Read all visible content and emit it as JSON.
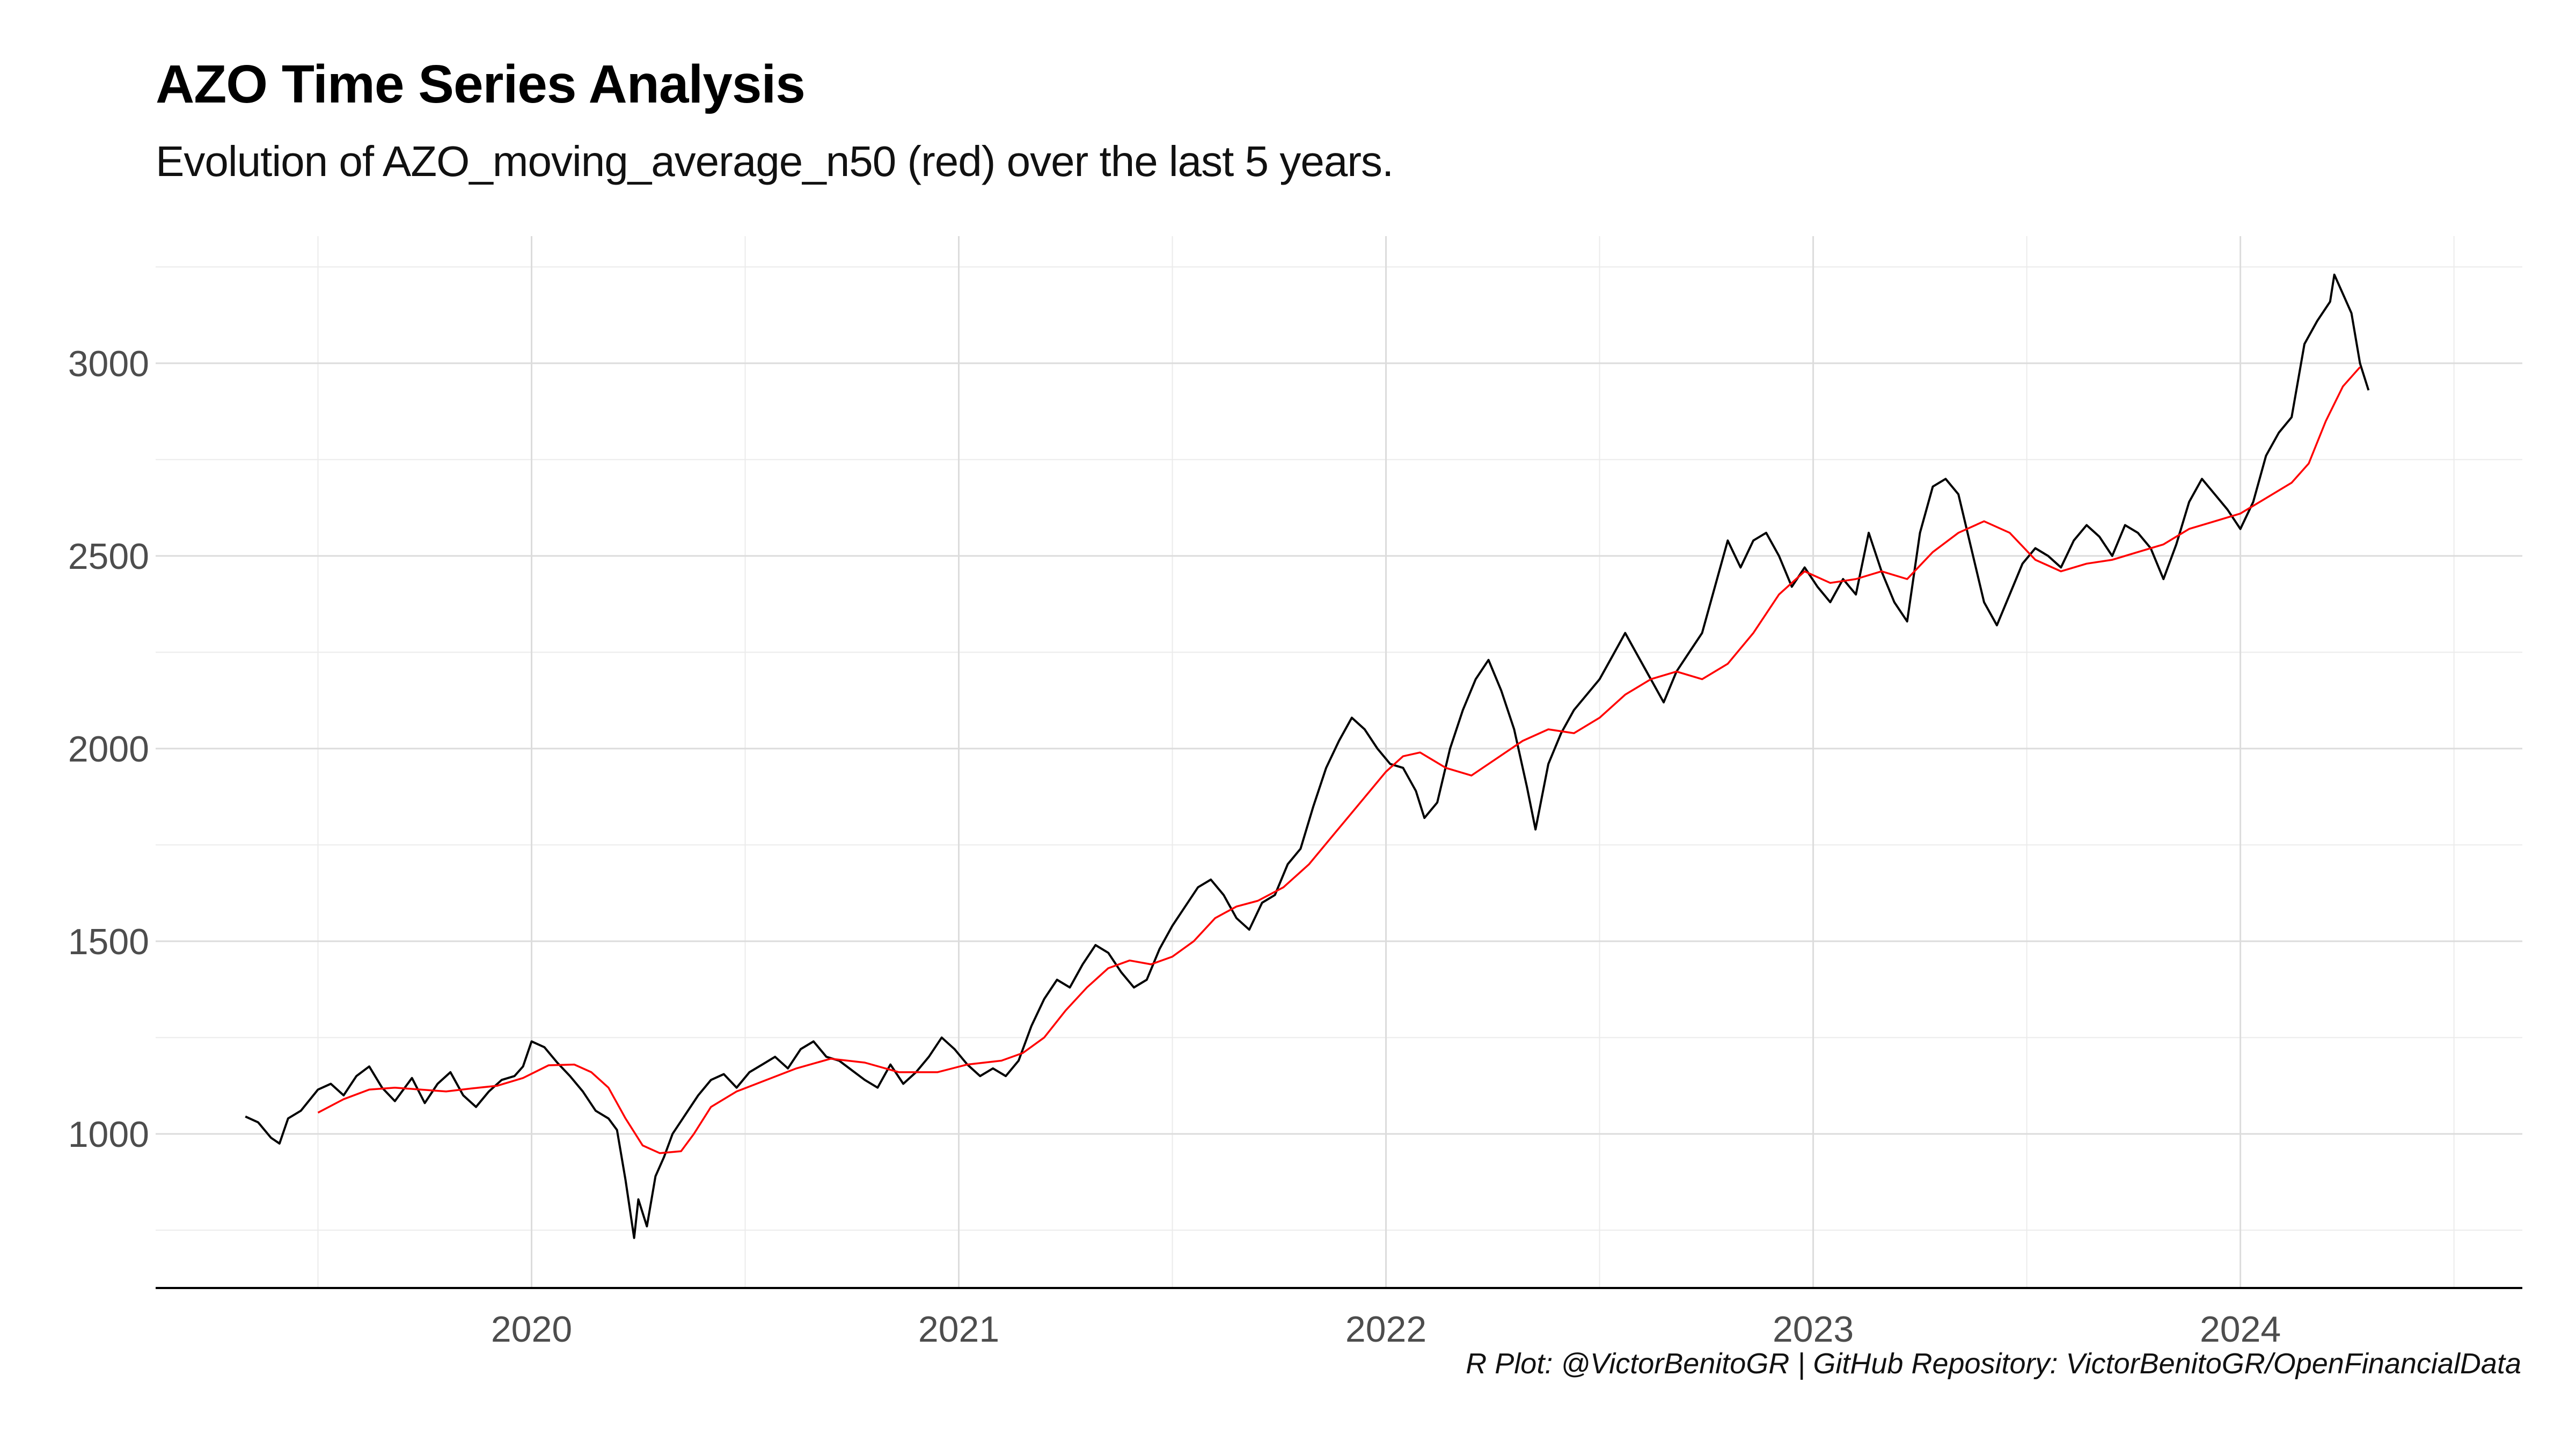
{
  "title": "AZO Time Series Analysis",
  "subtitle": "Evolution of AZO_moving_average_n50  (red) over the last 5 years.",
  "caption": "R Plot: @VictorBenitoGR | GitHub Repository:  VictorBenitoGR/OpenFinancialData",
  "chart_data": {
    "type": "line",
    "title": "AZO Time Series Analysis",
    "subtitle": "Evolution of AZO_moving_average_n50  (red) over the last 5 years.",
    "xlabel": "",
    "ylabel": "",
    "xlim": [
      2019.12,
      2024.66
    ],
    "ylim": [
      600,
      3330
    ],
    "x_ticks": [
      2020,
      2021,
      2022,
      2023,
      2024
    ],
    "x_tick_labels": [
      "2020",
      "2021",
      "2022",
      "2023",
      "2024"
    ],
    "y_ticks": [
      1000,
      1500,
      2000,
      2500,
      3000
    ],
    "y_tick_labels": [
      "1000",
      "1500",
      "2000",
      "2500",
      "3000"
    ],
    "grid": true,
    "legend": "none",
    "colors": {
      "price": "#000000",
      "moving_average": "#ff0000"
    },
    "series": [
      {
        "color": "#000000",
        "points": [
          [
            2019.33,
            1045
          ],
          [
            2019.36,
            1030
          ],
          [
            2019.39,
            990
          ],
          [
            2019.41,
            975
          ],
          [
            2019.43,
            1040
          ],
          [
            2019.46,
            1060
          ],
          [
            2019.5,
            1115
          ],
          [
            2019.53,
            1130
          ],
          [
            2019.56,
            1100
          ],
          [
            2019.59,
            1150
          ],
          [
            2019.62,
            1175
          ],
          [
            2019.65,
            1120
          ],
          [
            2019.68,
            1085
          ],
          [
            2019.72,
            1145
          ],
          [
            2019.75,
            1080
          ],
          [
            2019.78,
            1130
          ],
          [
            2019.81,
            1160
          ],
          [
            2019.84,
            1100
          ],
          [
            2019.87,
            1070
          ],
          [
            2019.9,
            1110
          ],
          [
            2019.93,
            1140
          ],
          [
            2019.96,
            1150
          ],
          [
            2019.98,
            1175
          ],
          [
            2020.0,
            1240
          ],
          [
            2020.03,
            1225
          ],
          [
            2020.06,
            1185
          ],
          [
            2020.09,
            1150
          ],
          [
            2020.12,
            1110
          ],
          [
            2020.15,
            1060
          ],
          [
            2020.18,
            1040
          ],
          [
            2020.2,
            1010
          ],
          [
            2020.22,
            880
          ],
          [
            2020.24,
            730
          ],
          [
            2020.25,
            830
          ],
          [
            2020.27,
            760
          ],
          [
            2020.29,
            890
          ],
          [
            2020.31,
            940
          ],
          [
            2020.33,
            1000
          ],
          [
            2020.36,
            1050
          ],
          [
            2020.39,
            1100
          ],
          [
            2020.42,
            1140
          ],
          [
            2020.45,
            1155
          ],
          [
            2020.48,
            1120
          ],
          [
            2020.51,
            1160
          ],
          [
            2020.54,
            1180
          ],
          [
            2020.57,
            1200
          ],
          [
            2020.6,
            1170
          ],
          [
            2020.63,
            1220
          ],
          [
            2020.66,
            1240
          ],
          [
            2020.69,
            1200
          ],
          [
            2020.72,
            1190
          ],
          [
            2020.75,
            1165
          ],
          [
            2020.78,
            1140
          ],
          [
            2020.81,
            1120
          ],
          [
            2020.84,
            1180
          ],
          [
            2020.87,
            1130
          ],
          [
            2020.9,
            1160
          ],
          [
            2020.93,
            1200
          ],
          [
            2020.96,
            1250
          ],
          [
            2020.99,
            1220
          ],
          [
            2021.02,
            1180
          ],
          [
            2021.05,
            1150
          ],
          [
            2021.08,
            1170
          ],
          [
            2021.11,
            1150
          ],
          [
            2021.14,
            1190
          ],
          [
            2021.17,
            1280
          ],
          [
            2021.2,
            1350
          ],
          [
            2021.23,
            1400
          ],
          [
            2021.26,
            1380
          ],
          [
            2021.29,
            1440
          ],
          [
            2021.32,
            1490
          ],
          [
            2021.35,
            1470
          ],
          [
            2021.38,
            1420
          ],
          [
            2021.41,
            1380
          ],
          [
            2021.44,
            1400
          ],
          [
            2021.47,
            1480
          ],
          [
            2021.5,
            1540
          ],
          [
            2021.53,
            1590
          ],
          [
            2021.56,
            1640
          ],
          [
            2021.59,
            1660
          ],
          [
            2021.62,
            1620
          ],
          [
            2021.65,
            1560
          ],
          [
            2021.68,
            1530
          ],
          [
            2021.71,
            1600
          ],
          [
            2021.74,
            1620
          ],
          [
            2021.77,
            1700
          ],
          [
            2021.8,
            1740
          ],
          [
            2021.83,
            1850
          ],
          [
            2021.86,
            1950
          ],
          [
            2021.89,
            2020
          ],
          [
            2021.92,
            2080
          ],
          [
            2021.95,
            2050
          ],
          [
            2021.98,
            2000
          ],
          [
            2022.01,
            1960
          ],
          [
            2022.04,
            1950
          ],
          [
            2022.07,
            1890
          ],
          [
            2022.09,
            1820
          ],
          [
            2022.12,
            1860
          ],
          [
            2022.15,
            2000
          ],
          [
            2022.18,
            2100
          ],
          [
            2022.21,
            2180
          ],
          [
            2022.24,
            2230
          ],
          [
            2022.27,
            2150
          ],
          [
            2022.3,
            2050
          ],
          [
            2022.33,
            1900
          ],
          [
            2022.35,
            1790
          ],
          [
            2022.38,
            1960
          ],
          [
            2022.41,
            2040
          ],
          [
            2022.44,
            2100
          ],
          [
            2022.47,
            2140
          ],
          [
            2022.5,
            2180
          ],
          [
            2022.53,
            2240
          ],
          [
            2022.56,
            2300
          ],
          [
            2022.59,
            2240
          ],
          [
            2022.62,
            2180
          ],
          [
            2022.65,
            2120
          ],
          [
            2022.68,
            2200
          ],
          [
            2022.71,
            2250
          ],
          [
            2022.74,
            2300
          ],
          [
            2022.77,
            2420
          ],
          [
            2022.8,
            2540
          ],
          [
            2022.83,
            2470
          ],
          [
            2022.86,
            2540
          ],
          [
            2022.89,
            2560
          ],
          [
            2022.92,
            2500
          ],
          [
            2022.95,
            2420
          ],
          [
            2022.98,
            2470
          ],
          [
            2023.01,
            2420
          ],
          [
            2023.04,
            2380
          ],
          [
            2023.07,
            2440
          ],
          [
            2023.1,
            2400
          ],
          [
            2023.13,
            2560
          ],
          [
            2023.16,
            2460
          ],
          [
            2023.19,
            2380
          ],
          [
            2023.22,
            2330
          ],
          [
            2023.25,
            2560
          ],
          [
            2023.28,
            2680
          ],
          [
            2023.31,
            2700
          ],
          [
            2023.34,
            2660
          ],
          [
            2023.37,
            2520
          ],
          [
            2023.4,
            2380
          ],
          [
            2023.43,
            2320
          ],
          [
            2023.46,
            2400
          ],
          [
            2023.49,
            2480
          ],
          [
            2023.52,
            2520
          ],
          [
            2023.55,
            2500
          ],
          [
            2023.58,
            2470
          ],
          [
            2023.61,
            2540
          ],
          [
            2023.64,
            2580
          ],
          [
            2023.67,
            2550
          ],
          [
            2023.7,
            2500
          ],
          [
            2023.73,
            2580
          ],
          [
            2023.76,
            2560
          ],
          [
            2023.79,
            2520
          ],
          [
            2023.82,
            2440
          ],
          [
            2023.85,
            2530
          ],
          [
            2023.88,
            2640
          ],
          [
            2023.91,
            2700
          ],
          [
            2023.94,
            2660
          ],
          [
            2023.97,
            2620
          ],
          [
            2024.0,
            2570
          ],
          [
            2024.03,
            2640
          ],
          [
            2024.06,
            2760
          ],
          [
            2024.09,
            2820
          ],
          [
            2024.12,
            2860
          ],
          [
            2024.15,
            3050
          ],
          [
            2024.18,
            3110
          ],
          [
            2024.21,
            3160
          ],
          [
            2024.22,
            3230
          ],
          [
            2024.24,
            3180
          ],
          [
            2024.26,
            3130
          ],
          [
            2024.28,
            3000
          ],
          [
            2024.3,
            2930
          ]
        ]
      },
      {
        "color": "#ff0000",
        "points": [
          [
            2019.5,
            1055
          ],
          [
            2019.56,
            1090
          ],
          [
            2019.62,
            1115
          ],
          [
            2019.68,
            1120
          ],
          [
            2019.74,
            1115
          ],
          [
            2019.8,
            1110
          ],
          [
            2019.86,
            1118
          ],
          [
            2019.92,
            1125
          ],
          [
            2019.98,
            1145
          ],
          [
            2020.04,
            1178
          ],
          [
            2020.1,
            1180
          ],
          [
            2020.14,
            1160
          ],
          [
            2020.18,
            1120
          ],
          [
            2020.22,
            1040
          ],
          [
            2020.26,
            970
          ],
          [
            2020.3,
            950
          ],
          [
            2020.35,
            955
          ],
          [
            2020.38,
            1000
          ],
          [
            2020.42,
            1070
          ],
          [
            2020.48,
            1110
          ],
          [
            2020.55,
            1140
          ],
          [
            2020.62,
            1170
          ],
          [
            2020.7,
            1195
          ],
          [
            2020.78,
            1185
          ],
          [
            2020.86,
            1160
          ],
          [
            2020.95,
            1160
          ],
          [
            2021.02,
            1180
          ],
          [
            2021.1,
            1190
          ],
          [
            2021.15,
            1210
          ],
          [
            2021.2,
            1250
          ],
          [
            2021.25,
            1320
          ],
          [
            2021.3,
            1380
          ],
          [
            2021.35,
            1430
          ],
          [
            2021.4,
            1450
          ],
          [
            2021.45,
            1440
          ],
          [
            2021.5,
            1460
          ],
          [
            2021.55,
            1500
          ],
          [
            2021.6,
            1560
          ],
          [
            2021.65,
            1590
          ],
          [
            2021.7,
            1605
          ],
          [
            2021.76,
            1640
          ],
          [
            2021.82,
            1700
          ],
          [
            2021.88,
            1780
          ],
          [
            2021.94,
            1860
          ],
          [
            2022.0,
            1940
          ],
          [
            2022.04,
            1980
          ],
          [
            2022.08,
            1990
          ],
          [
            2022.14,
            1950
          ],
          [
            2022.2,
            1930
          ],
          [
            2022.26,
            1975
          ],
          [
            2022.32,
            2020
          ],
          [
            2022.38,
            2050
          ],
          [
            2022.44,
            2040
          ],
          [
            2022.5,
            2080
          ],
          [
            2022.56,
            2140
          ],
          [
            2022.62,
            2180
          ],
          [
            2022.68,
            2200
          ],
          [
            2022.74,
            2180
          ],
          [
            2022.8,
            2220
          ],
          [
            2022.86,
            2300
          ],
          [
            2022.92,
            2400
          ],
          [
            2022.98,
            2460
          ],
          [
            2023.04,
            2430
          ],
          [
            2023.1,
            2440
          ],
          [
            2023.16,
            2460
          ],
          [
            2023.22,
            2440
          ],
          [
            2023.28,
            2510
          ],
          [
            2023.34,
            2560
          ],
          [
            2023.4,
            2590
          ],
          [
            2023.46,
            2560
          ],
          [
            2023.52,
            2490
          ],
          [
            2023.58,
            2460
          ],
          [
            2023.64,
            2480
          ],
          [
            2023.7,
            2490
          ],
          [
            2023.76,
            2510
          ],
          [
            2023.82,
            2530
          ],
          [
            2023.88,
            2570
          ],
          [
            2023.94,
            2590
          ],
          [
            2024.0,
            2610
          ],
          [
            2024.06,
            2650
          ],
          [
            2024.12,
            2690
          ],
          [
            2024.16,
            2740
          ],
          [
            2024.2,
            2850
          ],
          [
            2024.24,
            2940
          ],
          [
            2024.28,
            2990
          ]
        ]
      }
    ]
  }
}
